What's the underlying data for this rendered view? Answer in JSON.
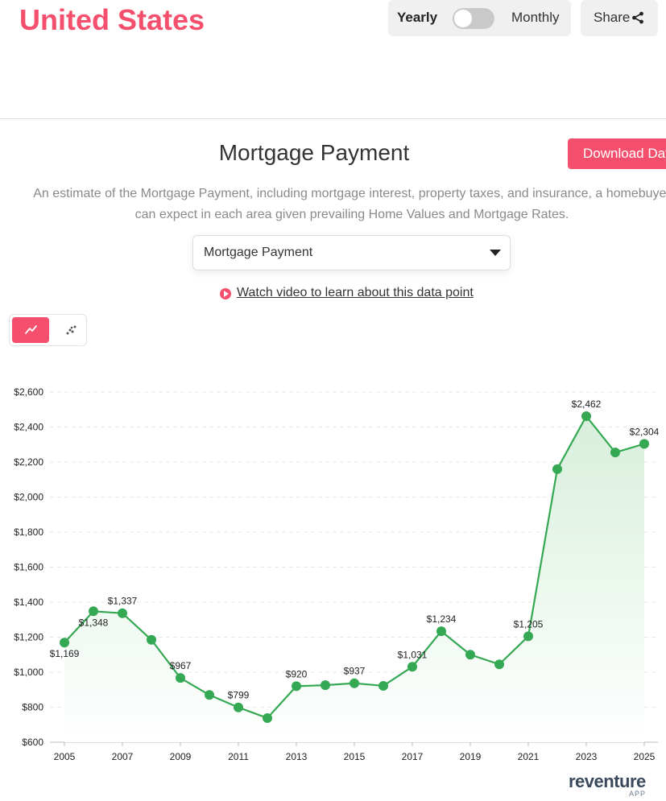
{
  "header": {
    "region": "United States",
    "toggle": {
      "yearly_label": "Yearly",
      "monthly_label": "Monthly",
      "selected": "Yearly"
    },
    "share_label": "Share"
  },
  "section": {
    "title": "Mortgage Payment",
    "download_label": "Download Dat",
    "description": "An estimate of the Mortgage Payment, including mortgage interest, property taxes, and insurance, a homebuyer can expect in each area given prevailing Home Values and Mortgage Rates.",
    "dropdown_value": "Mortgage Payment",
    "video_link": "Watch video to learn about this data point"
  },
  "chart_modes": {
    "selected": "line",
    "icons": [
      "line-chart-icon",
      "scatter-chart-icon"
    ]
  },
  "colors": {
    "accent": "#f4506d",
    "line": "#34a853",
    "area": "#e6f5e9"
  },
  "brand": {
    "name": "reventure",
    "sub": "APP"
  },
  "chart_data": {
    "type": "line",
    "x": [
      2005,
      2006,
      2007,
      2008,
      2009,
      2010,
      2011,
      2012,
      2013,
      2014,
      2015,
      2016,
      2017,
      2018,
      2019,
      2020,
      2021,
      2022,
      2023,
      2024,
      2025
    ],
    "values": [
      1169,
      1348,
      1337,
      1185,
      967,
      870,
      799,
      738,
      920,
      926,
      937,
      922,
      1031,
      1234,
      1100,
      1045,
      1205,
      2160,
      2462,
      2255,
      2304
    ],
    "data_labels": {
      "2005": "$1,169",
      "2006": "$1,348",
      "2007": "$1,337",
      "2009": "$967",
      "2011": "$799",
      "2013": "$920",
      "2015": "$937",
      "2017": "$1,031",
      "2018": "$1,234",
      "2021": "$1,205",
      "2023": "$2,462",
      "2025": "$2,304"
    },
    "x_ticks": [
      "2005",
      "2007",
      "2009",
      "2011",
      "2013",
      "2015",
      "2017",
      "2019",
      "2021",
      "2023",
      "2025"
    ],
    "y_ticks": [
      "$600",
      "$800",
      "$1,000",
      "$1,200",
      "$1,400",
      "$1,600",
      "$1,800",
      "$2,000",
      "$2,200",
      "$2,400",
      "$2,600"
    ],
    "ylim": [
      600,
      2600
    ],
    "xlim": [
      2005,
      2025
    ],
    "grid": true,
    "fill": "gradient area under line"
  }
}
